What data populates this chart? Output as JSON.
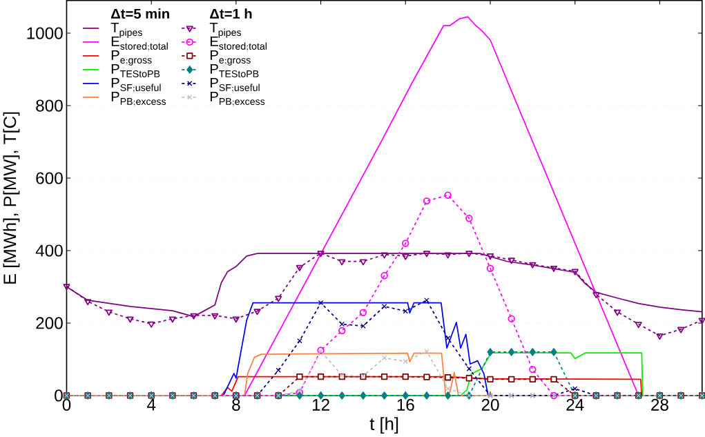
{
  "chart_data": {
    "type": "line",
    "xlabel": "t [h]",
    "ylabel": "E [MWh], P[MW], T[C]",
    "x": [
      0,
      1,
      2,
      3,
      4,
      5,
      6,
      7,
      8,
      9,
      10,
      11,
      12,
      13,
      14,
      15,
      16,
      17,
      18,
      19,
      20,
      21,
      22,
      23,
      24,
      25,
      26,
      27,
      28,
      29,
      30
    ],
    "xlim": [
      0,
      30
    ],
    "xticks": [
      0,
      4,
      8,
      12,
      16,
      20,
      24,
      28
    ],
    "ylim": [
      0,
      1090
    ],
    "yticks": [
      0,
      200,
      400,
      600,
      800,
      1000
    ],
    "grid": "y",
    "legend": "top left",
    "annotations": [
      "Δt=5 min",
      "Δt=1 h"
    ],
    "series": [
      {
        "name": "\\mathrm{T}_{\\mathrm{pipes}}",
        "color": "#800080",
        "line_style": "solid",
        "marker": "none",
        "x": [
          0,
          1,
          3,
          5,
          6,
          6.5,
          7,
          7.3,
          7.6,
          8,
          8.5,
          9,
          19.5,
          20.8,
          22,
          24,
          24.5,
          25,
          26,
          27,
          28,
          29,
          30
        ],
        "values": [
          300,
          263,
          246,
          234,
          218,
          234,
          250,
          311,
          342,
          356,
          385,
          392,
          392,
          370,
          360,
          340,
          308,
          285,
          269,
          254,
          244,
          237,
          231
        ]
      },
      {
        "name": "\\mathrm{E}_{\\mathrm{stored;total}}",
        "color": "#ff00ff",
        "line_style": "solid",
        "marker": "none",
        "x": [
          0,
          8.4,
          14.9,
          16.3,
          17.8,
          18.1,
          18.55,
          18.94,
          19.3,
          19.6,
          20,
          27,
          30
        ],
        "values": [
          0,
          0,
          706,
          862,
          1021,
          1021,
          1040,
          1045,
          1022,
          1007,
          981,
          0,
          0
        ]
      },
      {
        "name": "\\mathrm{P}_{\\mathrm{e;gross}}",
        "color": "#ff0000",
        "line_style": "solid",
        "marker": "none",
        "x": [
          0,
          7.3,
          7.6,
          7.8,
          8.1,
          18,
          20,
          27.1,
          27.15,
          30
        ],
        "values": [
          0,
          0,
          22,
          12,
          52,
          52,
          46,
          45,
          0,
          0
        ]
      },
      {
        "name": "\\mathrm{P}_{\\mathrm{TEStoPB}}",
        "color": "#00ee00",
        "line_style": "solid",
        "marker": "none",
        "x": [
          0,
          18.6,
          18.9,
          19.1,
          19.6,
          20.05,
          23.8,
          24,
          24.5,
          27.15,
          27.2,
          30
        ],
        "values": [
          0,
          0,
          16,
          60,
          74,
          118,
          118,
          102,
          118,
          118,
          0,
          0
        ]
      },
      {
        "name": "\\mathrm{P}_{\\mathrm{SF;useful}}",
        "color": "#0000ff",
        "line_style": "solid",
        "marker": "none",
        "x": [
          0,
          7.4,
          7.9,
          8.0,
          8.5,
          8.8,
          16.1,
          16.2,
          16.4,
          17.68,
          17.95,
          18.4,
          18.6,
          18.85,
          19.05,
          19.4,
          19.7,
          19.9,
          30
        ],
        "values": [
          0,
          0,
          61,
          48,
          208,
          256,
          256,
          228,
          256,
          256,
          131,
          202,
          131,
          169,
          87,
          96,
          60,
          0,
          0
        ]
      },
      {
        "name": "\\mathrm{P}_{\\mathrm{PB;excess}}",
        "color": "#ff8040",
        "line_style": "solid",
        "marker": "none",
        "x": [
          0,
          8.4,
          8.55,
          8.87,
          9.2,
          16.1,
          16.2,
          16.4,
          17.7,
          17.9,
          18.1,
          18.3,
          18.5,
          30
        ],
        "values": [
          0,
          0,
          61,
          106,
          114,
          117,
          93,
          117,
          117,
          0,
          10,
          64,
          0,
          0
        ]
      },
      {
        "name": "\\mathrm{T}_{\\mathrm{pipes}}",
        "color": "#800080",
        "line_style": "dashed",
        "marker": "triangle",
        "values": [
          302,
          260,
          231,
          212,
          198,
          212,
          221,
          221,
          212,
          233,
          269,
          354,
          393,
          370,
          370,
          389,
          385,
          393,
          389,
          393,
          386,
          374,
          362,
          352,
          343,
          279,
          231,
          197,
          165,
          183,
          208
        ]
      },
      {
        "name": "\\mathrm{E}_{\\mathrm{stored;total}}",
        "color": "#ff00ff",
        "line_style": "dashed",
        "marker": "circle",
        "values": [
          null,
          null,
          null,
          null,
          null,
          null,
          null,
          0,
          0,
          0,
          0,
          8,
          125,
          179,
          229,
          331,
          420,
          537,
          553,
          489,
          351,
          212,
          72,
          0,
          0,
          0,
          null,
          null,
          null,
          null,
          null
        ]
      },
      {
        "name": "\\mathrm{P}_{\\mathrm{e;gross}}",
        "color": "#800000",
        "line_style": "dashed",
        "marker": "square",
        "values": [
          0,
          0,
          0,
          0,
          0,
          0,
          0,
          0,
          0,
          0,
          0,
          52,
          52,
          52,
          52,
          52,
          52,
          51,
          50,
          48,
          45,
          45,
          45,
          45,
          0,
          0,
          0,
          0,
          0,
          0,
          0
        ]
      },
      {
        "name": "\\mathrm{P}_{\\mathrm{TEStoPB}}",
        "color": "#008080",
        "line_style": "dashed",
        "marker": "diamond",
        "values": [
          0,
          0,
          0,
          0,
          0,
          0,
          0,
          0,
          0,
          0,
          0,
          0,
          0,
          0,
          0,
          0,
          0,
          0,
          0,
          0,
          120,
          120,
          120,
          120,
          0,
          0,
          0,
          0,
          0,
          0,
          0
        ]
      },
      {
        "name": "\\mathrm{P}_{\\mathrm{SF;useful}}",
        "color": "#000080",
        "line_style": "dashed",
        "marker": "cross",
        "values": [
          0,
          0,
          0,
          0,
          0,
          0,
          0,
          0,
          0,
          0,
          70,
          151,
          256,
          197,
          192,
          246,
          233,
          263,
          158,
          74,
          0,
          0,
          0,
          0,
          19,
          0,
          0,
          0,
          0,
          0,
          0
        ]
      },
      {
        "name": "\\mathrm{P}_{\\mathrm{PB;excess}}",
        "color": "#c0c0c0",
        "line_style": "dashed",
        "marker": "cross",
        "values": [
          0,
          0,
          0,
          0,
          0,
          0,
          0,
          0,
          0,
          0,
          0,
          13,
          122,
          56,
          54,
          104,
          94,
          122,
          19,
          0,
          0,
          0,
          0,
          0,
          0,
          0,
          0,
          0,
          0,
          0,
          0
        ]
      }
    ]
  }
}
